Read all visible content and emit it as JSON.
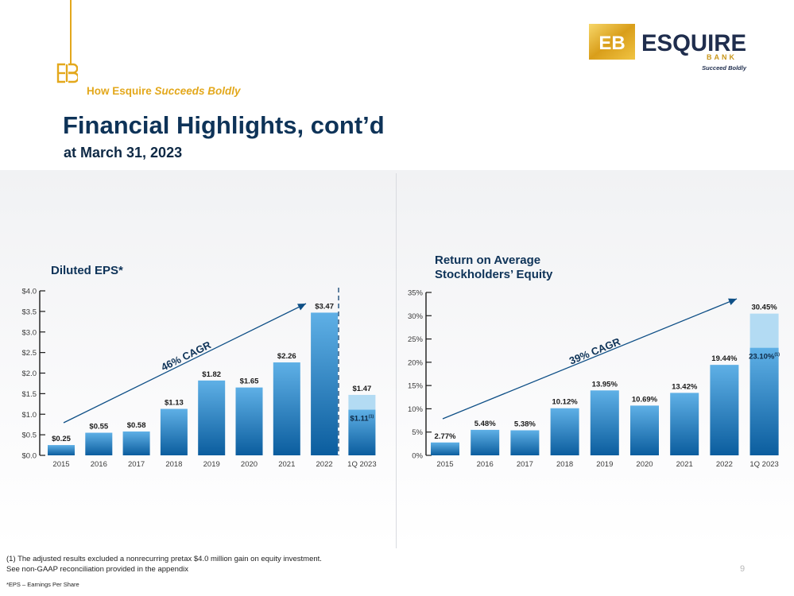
{
  "header": {
    "tagline_prefix": "How Esquire ",
    "tagline_emphasis": "Succeeds Boldly",
    "title": "Financial Highlights, cont’d",
    "subtitle": "at March 31, 2023"
  },
  "logo": {
    "monogram": "EB",
    "name": "ESQUIRE",
    "sub": "BANK",
    "slogan": "Succeed Boldly"
  },
  "colors": {
    "gold": "#e3a81c",
    "navy": "#0e3358",
    "bar_top": "#5fb0e6",
    "bar_bottom": "#0b5d9e",
    "bar_light": "#b3dbf3"
  },
  "chart_data": [
    {
      "type": "bar",
      "title": "Diluted EPS*",
      "categories": [
        "2015",
        "2016",
        "2017",
        "2018",
        "2019",
        "2020",
        "2021",
        "2022",
        "1Q 2023"
      ],
      "values": [
        0.25,
        0.55,
        0.58,
        1.13,
        1.82,
        1.65,
        2.26,
        3.47,
        1.47
      ],
      "labels": [
        "$0.25",
        "$0.55",
        "$0.58",
        "$1.13",
        "$1.82",
        "$1.65",
        "$2.26",
        "$3.47",
        "$1.47"
      ],
      "adjusted": {
        "category": "1Q 2023",
        "value": 1.11,
        "label": "$1.11",
        "marker": "(1)"
      },
      "ylim": [
        0,
        4
      ],
      "yticks": [
        0,
        0.5,
        1.0,
        1.5,
        2.0,
        2.5,
        3.0,
        3.5,
        4.0
      ],
      "ytick_labels": [
        "$0.0",
        "$0.5",
        "$1.0",
        "$1.5",
        "$2.0",
        "$2.5",
        "$3.0",
        "$3.5",
        "$4.0"
      ],
      "annotation": "46% CAGR",
      "separator_before": "1Q 2023",
      "xlabel": "",
      "ylabel": ""
    },
    {
      "type": "bar",
      "title_lines": [
        "Return on Average",
        "Stockholders’ Equity"
      ],
      "categories": [
        "2015",
        "2016",
        "2017",
        "2018",
        "2019",
        "2020",
        "2021",
        "2022",
        "1Q 2023"
      ],
      "values": [
        2.77,
        5.48,
        5.38,
        10.12,
        13.95,
        10.69,
        13.42,
        19.44,
        30.45
      ],
      "labels": [
        "2.77%",
        "5.48%",
        "5.38%",
        "10.12%",
        "13.95%",
        "10.69%",
        "13.42%",
        "19.44%",
        "30.45%"
      ],
      "adjusted": {
        "category": "1Q 2023",
        "value": 23.1,
        "label": "23.10%",
        "marker": "(1)"
      },
      "ylim": [
        0,
        35
      ],
      "yticks": [
        0,
        5,
        10,
        15,
        20,
        25,
        30,
        35
      ],
      "ytick_labels": [
        "0%",
        "5%",
        "10%",
        "15%",
        "20%",
        "25%",
        "30%",
        "35%"
      ],
      "annotation": "39% CAGR",
      "xlabel": "",
      "ylabel": ""
    }
  ],
  "footnotes": {
    "line1": "(1) The adjusted results excluded a nonrecurring pretax $4.0 million gain on equity investment.",
    "line2": "See non-GAAP reconciliation provided in the appendix",
    "eps_note": "*EPS – Earnings Per Share"
  },
  "page_number": "9"
}
